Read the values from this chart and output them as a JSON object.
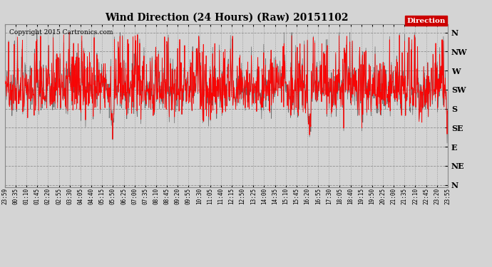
{
  "title": "Wind Direction (24 Hours) (Raw) 20151102",
  "copyright": "Copyright 2015 Cartronics.com",
  "legend_label": "Direction",
  "background_color": "#d4d4d4",
  "plot_bg": "#d4d4d4",
  "line_color": "#ff0000",
  "dark_line_color": "#404040",
  "ytick_labels": [
    "N",
    "NW",
    "W",
    "SW",
    "S",
    "SE",
    "E",
    "NE",
    "N"
  ],
  "ytick_values": [
    360,
    315,
    270,
    225,
    180,
    135,
    90,
    45,
    0
  ],
  "ylim_min": -5,
  "ylim_max": 380,
  "xtick_labels": [
    "23:59",
    "00:35",
    "01:10",
    "01:45",
    "02:20",
    "02:55",
    "03:30",
    "04:05",
    "04:40",
    "05:15",
    "05:50",
    "06:25",
    "07:00",
    "07:35",
    "08:10",
    "08:45",
    "09:20",
    "09:55",
    "10:30",
    "11:05",
    "11:40",
    "12:15",
    "12:50",
    "13:25",
    "14:00",
    "14:35",
    "15:10",
    "15:45",
    "16:20",
    "16:55",
    "17:30",
    "18:05",
    "18:40",
    "19:15",
    "19:50",
    "20:25",
    "21:00",
    "21:35",
    "22:10",
    "22:45",
    "23:20",
    "23:55"
  ],
  "num_points": 1440,
  "seed": 42,
  "figwidth": 6.9,
  "figheight": 3.75,
  "dpi": 100
}
